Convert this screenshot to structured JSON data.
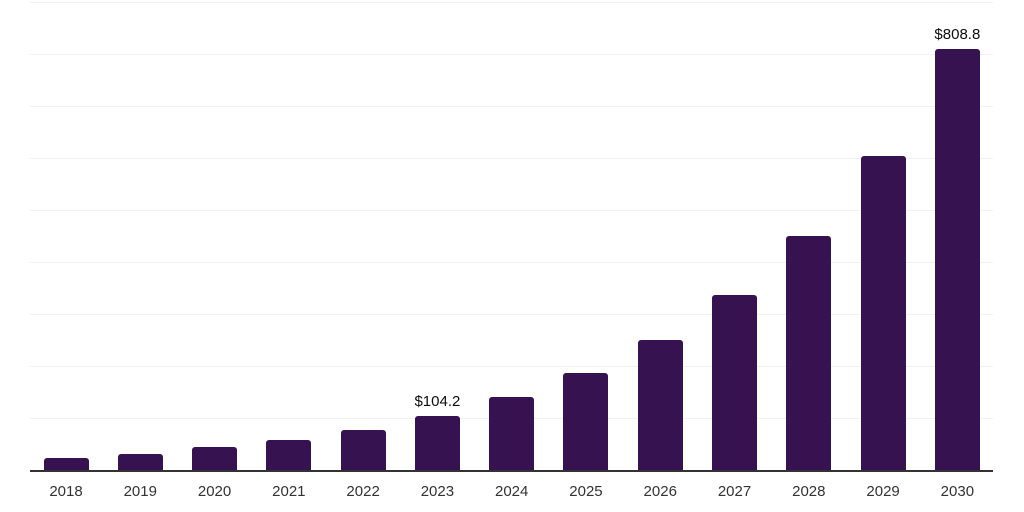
{
  "chart_data": {
    "type": "bar",
    "categories": [
      "2018",
      "2019",
      "2020",
      "2021",
      "2022",
      "2023",
      "2024",
      "2025",
      "2026",
      "2027",
      "2028",
      "2029",
      "2030"
    ],
    "values": [
      22.3,
      30.0,
      44.5,
      57.5,
      77.8,
      104.2,
      139.6,
      187.1,
      250.8,
      336.1,
      450.4,
      603.6,
      808.8
    ],
    "annotations": [
      {
        "category": "2023",
        "label": "$104.2"
      },
      {
        "category": "2030",
        "label": "$808.8"
      }
    ],
    "title": "",
    "xlabel": "",
    "ylabel": "",
    "ylim": [
      0,
      900
    ],
    "gridline_step": 100,
    "grid": true,
    "y_tick_labels_visible": false,
    "legend": "none",
    "colors": {
      "bar": "#361250",
      "gridline": "#f2f2f2",
      "axis_line": "#333333",
      "value_label": "#0d0d0d",
      "tick_label": "#333333",
      "background": "#ffffff"
    }
  }
}
